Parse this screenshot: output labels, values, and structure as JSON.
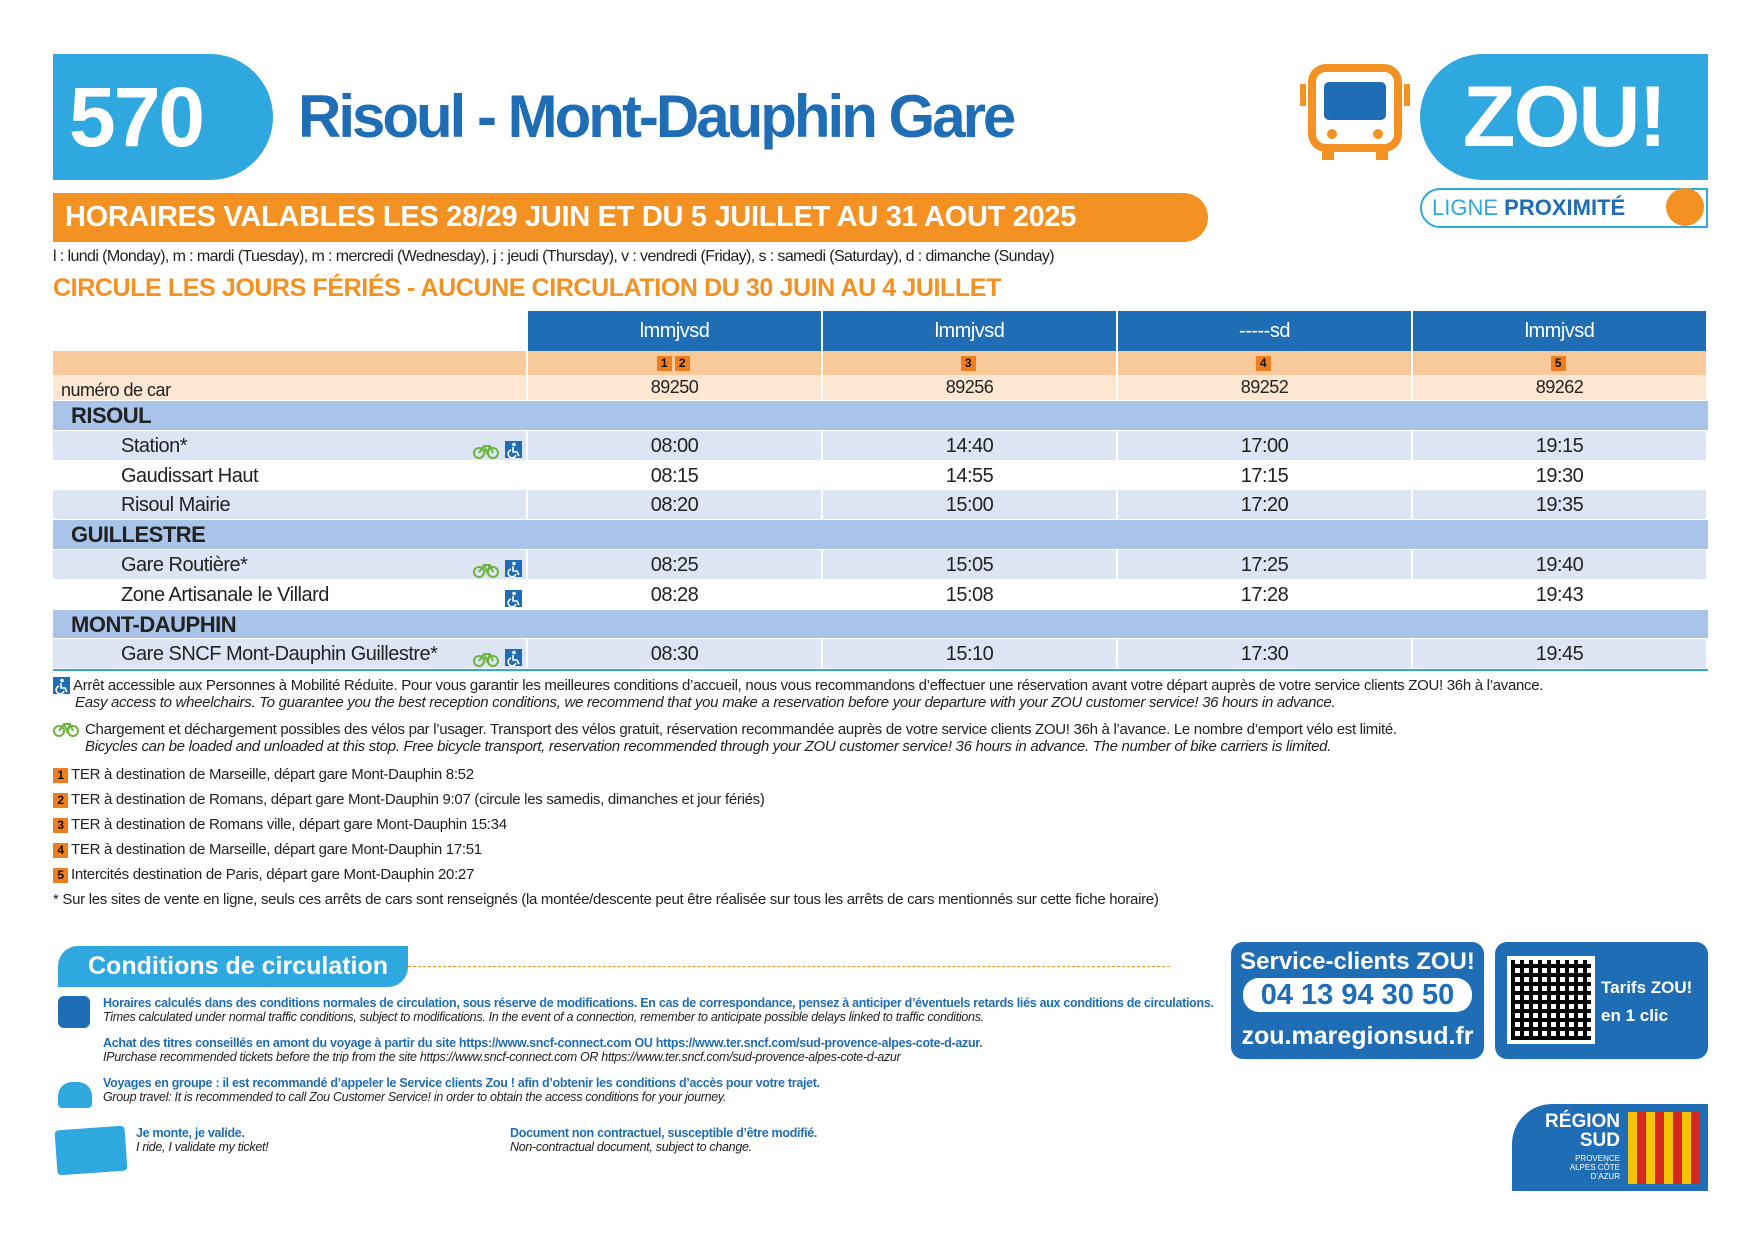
{
  "header": {
    "line": "570",
    "title": "Risoul - Mont-Dauphin Gare",
    "validity": "HORAIRES VALABLES LES 28/29 JUIN ET DU 5 JUILLET AU 31 AOUT 2025",
    "days_legend": "l : lundi (Monday), m : mardi (Tuesday), m : mercredi (Wednesday), j : jeudi (Thursday), v : vendredi (Friday), s : samedi (Saturday), d : dimanche (Sunday)",
    "holidays": "CIRCULE LES JOURS FÉRIÉS - AUCUNE CIRCULATION DU 30 JUIN AU 4 JUILLET"
  },
  "logo": {
    "brand": "ZOU!",
    "ligne": "LIGNE",
    "proximite": "PROXIMITÉ"
  },
  "table": {
    "car_label": "numéro de car",
    "columns": [
      {
        "days": "lmmjvsd",
        "notes": [
          "1",
          "2"
        ],
        "car": "89250"
      },
      {
        "days": "lmmjvsd",
        "notes": [
          "3"
        ],
        "car": "89256"
      },
      {
        "days": "-----sd",
        "notes": [
          "4"
        ],
        "car": "89252"
      },
      {
        "days": "lmmjvsd",
        "notes": [
          "5"
        ],
        "car": "89262"
      }
    ],
    "groups": [
      {
        "name": "RISOUL",
        "stops": [
          {
            "name": "Station*",
            "bike": true,
            "wheelchair": true,
            "times": [
              "08:00",
              "14:40",
              "17:00",
              "19:15"
            ]
          },
          {
            "name": "Gaudissart Haut",
            "bike": false,
            "wheelchair": false,
            "times": [
              "08:15",
              "14:55",
              "17:15",
              "19:30"
            ]
          },
          {
            "name": "Risoul Mairie",
            "bike": false,
            "wheelchair": false,
            "times": [
              "08:20",
              "15:00",
              "17:20",
              "19:35"
            ]
          }
        ]
      },
      {
        "name": "GUILLESTRE",
        "stops": [
          {
            "name": "Gare Routière*",
            "bike": true,
            "wheelchair": true,
            "times": [
              "08:25",
              "15:05",
              "17:25",
              "19:40"
            ]
          },
          {
            "name": "Zone Artisanale le Villard",
            "bike": false,
            "wheelchair": true,
            "times": [
              "08:28",
              "15:08",
              "17:28",
              "19:43"
            ]
          }
        ]
      },
      {
        "name": "MONT-DAUPHIN",
        "stops": [
          {
            "name": "Gare SNCF Mont-Dauphin Guillestre*",
            "bike": true,
            "wheelchair": true,
            "times": [
              "08:30",
              "15:10",
              "17:30",
              "19:45"
            ]
          }
        ]
      }
    ]
  },
  "notes": {
    "wheelchair_fr": "Arrêt accessible aux Personnes à Mobilité Réduite. Pour vous garantir les meilleures conditions d’accueil, nous vous recommandons d’effectuer une réservation avant votre départ auprès de votre service clients ZOU! 36h à l’avance.",
    "wheelchair_en": "Easy access to wheelchairs. To guarantee you the best reception conditions, we recommend that you make a reservation before your departure with your ZOU customer service! 36 hours in advance.",
    "bike_fr": "Chargement et déchargement possibles des vélos par l’usager. Transport des vélos gratuit, réservation recommandée auprès de votre service clients ZOU! 36h à l’avance. Le nombre d’emport vélo est limité.",
    "bike_en": "Bicycles can be loaded and unloaded at this stop. Free bicycle transport, reservation recommended through your ZOU customer service! 36 hours in advance. The number of bike carriers is limited.",
    "numbered": [
      {
        "num": "1",
        "text": "TER à destination de Marseille, départ gare Mont-Dauphin 8:52"
      },
      {
        "num": "2",
        "text": "TER à destination de Romans, départ gare Mont-Dauphin 9:07 (circule les samedis, dimanches et jour fériés)"
      },
      {
        "num": "3",
        "text": "TER à destination de Romans ville, départ gare Mont-Dauphin 15:34"
      },
      {
        "num": "4",
        "text": "TER à destination de Marseille, départ gare Mont-Dauphin 17:51"
      },
      {
        "num": "5",
        "text": "Intercités destination de Paris, départ gare Mont-Dauphin 20:27"
      }
    ],
    "asterisk": "* Sur les sites de vente en ligne, seuls ces arrêts de cars sont renseignés (la montée/descente peut être réalisée sur tous les arrêts de cars mentionnés sur cette fiche horaire)"
  },
  "conditions": {
    "title": "Conditions de circulation",
    "items": [
      {
        "fr": "Horaires calculés dans des conditions normales de circulation, sous réserve de modifications. En cas de correspondance, pensez à anticiper d’éventuels retards liés aux conditions de circulations.",
        "en": "Times calculated under normal traffic conditions, subject to modifications. In the event of a connection, remember to anticipate possible delays linked to traffic conditions."
      },
      {
        "fr": "Achat des titres conseillés en amont du voyage à partir du site https://www.sncf-connect.com OU https://www.ter.sncf.com/sud-provence-alpes-cote-d-azur.",
        "en": "IPurchase recommended tickets before the trip from the site https://www.sncf-connect.com OR https://www.ter.sncf.com/sud-provence-alpes-cote-d-azur"
      },
      {
        "fr": "Voyages en groupe : il est recommandé d’appeler le Service clients Zou ! afin d’obtenir les conditions d’accès pour votre trajet.",
        "en": "Group travel: It is recommended to call Zou Customer Service! in order to obtain the access conditions for your journey."
      }
    ],
    "ticket_fr": "Je monte, je valide.",
    "ticket_en": "I ride, I validate my ticket!",
    "doc_fr": "Document non contractuel, susceptible d’être modifié.",
    "doc_en": "Non-contractual document, subject to change."
  },
  "contact": {
    "service": "Service-clients ZOU!",
    "phone": "04 13 94 30 50",
    "url": "zou.maregionsud.fr",
    "tarifs": "Tarifs ZOU!",
    "tarifs2": "en 1 clic"
  },
  "region": {
    "name1": "RÉGION",
    "name2": "SUD",
    "sub": "PROVENCE ALPES CÔTE D’AZUR"
  }
}
